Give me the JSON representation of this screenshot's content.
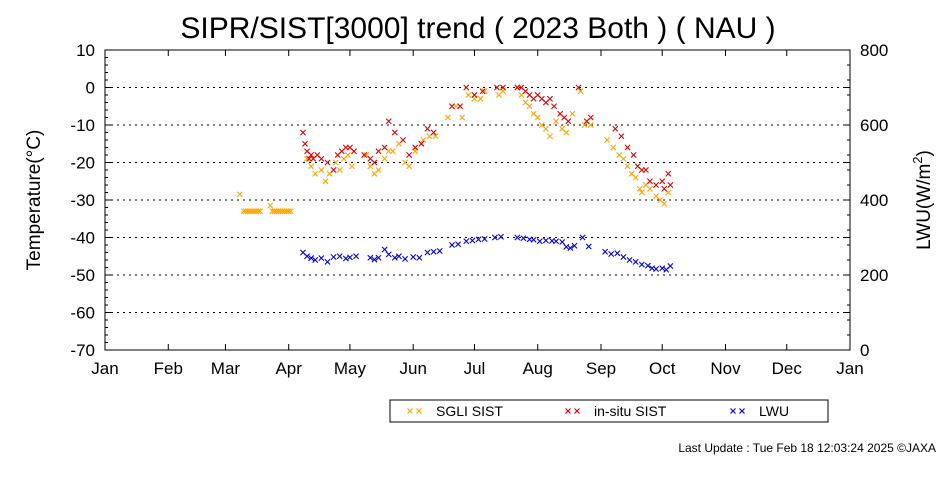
{
  "chart_data": {
    "type": "scatter",
    "title": "SIPR/SIST[3000] trend ( 2023 Both ) ( NAU )",
    "ylabel": "Temperature(°C)",
    "ylabel2": "LWU(W/m²)",
    "ylim": [
      -70,
      10
    ],
    "ylim2": [
      0,
      800
    ],
    "yticks": [
      10,
      0,
      -10,
      -20,
      -30,
      -40,
      -50,
      -60,
      -70
    ],
    "yticks2": [
      800,
      600,
      400,
      200,
      0
    ],
    "xtick_labels": [
      "Jan",
      "Feb",
      "Mar",
      "Apr",
      "May",
      "Jun",
      "Jul",
      "Aug",
      "Sep",
      "Oct",
      "Nov",
      "Dec",
      "Jan"
    ],
    "grid": "dotted horizontal",
    "legend_position": "bottom",
    "series": [
      {
        "name": "SGLI SIST",
        "color": "#ffa500",
        "marker": "x",
        "axis": "left",
        "points": [
          [
            "2023-03-08",
            -28.5
          ],
          [
            "2023-03-10",
            -33
          ],
          [
            "2023-03-11",
            -33
          ],
          [
            "2023-03-12",
            -33
          ],
          [
            "2023-03-13",
            -33
          ],
          [
            "2023-03-14",
            -33
          ],
          [
            "2023-03-15",
            -33
          ],
          [
            "2023-03-16",
            -33
          ],
          [
            "2023-03-17",
            -33
          ],
          [
            "2023-03-18",
            -33
          ],
          [
            "2023-03-23",
            -31.5
          ],
          [
            "2023-03-24",
            -33
          ],
          [
            "2023-03-25",
            -33
          ],
          [
            "2023-03-26",
            -33
          ],
          [
            "2023-03-27",
            -33
          ],
          [
            "2023-03-28",
            -33
          ],
          [
            "2023-03-29",
            -33
          ],
          [
            "2023-03-30",
            -33
          ],
          [
            "2023-03-31",
            -33
          ],
          [
            "2023-04-01",
            -33
          ],
          [
            "2023-04-02",
            -33
          ],
          [
            "2023-04-10",
            -19
          ],
          [
            "2023-04-12",
            -21
          ],
          [
            "2023-04-14",
            -23
          ],
          [
            "2023-04-17",
            -22
          ],
          [
            "2023-04-19",
            -25
          ],
          [
            "2023-04-21",
            -23
          ],
          [
            "2023-04-24",
            -20
          ],
          [
            "2023-04-26",
            -22
          ],
          [
            "2023-04-28",
            -19
          ],
          [
            "2023-04-30",
            -18
          ],
          [
            "2023-05-02",
            -21
          ],
          [
            "2023-05-09",
            -18
          ],
          [
            "2023-05-11",
            -21
          ],
          [
            "2023-05-13",
            -23
          ],
          [
            "2023-05-15",
            -22
          ],
          [
            "2023-05-18",
            -19
          ],
          [
            "2023-05-20",
            -17
          ],
          [
            "2023-05-22",
            -17
          ],
          [
            "2023-05-25",
            -15
          ],
          [
            "2023-05-28",
            -20
          ],
          [
            "2023-05-30",
            -21
          ],
          [
            "2023-06-02",
            -17
          ],
          [
            "2023-06-06",
            -14
          ],
          [
            "2023-06-09",
            -13
          ],
          [
            "2023-06-12",
            -13
          ],
          [
            "2023-06-18",
            -8
          ],
          [
            "2023-06-22",
            -5
          ],
          [
            "2023-06-25",
            -8
          ],
          [
            "2023-06-28",
            -2
          ],
          [
            "2023-07-01",
            -3
          ],
          [
            "2023-07-04",
            -3
          ],
          [
            "2023-07-06",
            -1
          ],
          [
            "2023-07-13",
            -2
          ],
          [
            "2023-07-15",
            -1
          ],
          [
            "2023-07-22",
            0
          ],
          [
            "2023-07-24",
            -2
          ],
          [
            "2023-07-26",
            -4
          ],
          [
            "2023-07-28",
            -5
          ],
          [
            "2023-07-30",
            -7
          ],
          [
            "2023-08-01",
            -8
          ],
          [
            "2023-08-03",
            -10
          ],
          [
            "2023-08-05",
            -11
          ],
          [
            "2023-08-07",
            -13
          ],
          [
            "2023-08-10",
            -9
          ],
          [
            "2023-08-13",
            -11
          ],
          [
            "2023-08-15",
            -12
          ],
          [
            "2023-08-18",
            -7
          ],
          [
            "2023-08-22",
            -1
          ],
          [
            "2023-08-24",
            -10
          ],
          [
            "2023-08-27",
            -10
          ],
          [
            "2023-09-04",
            -14
          ],
          [
            "2023-09-07",
            -16
          ],
          [
            "2023-09-10",
            -18
          ],
          [
            "2023-09-12",
            -19
          ],
          [
            "2023-09-14",
            -21
          ],
          [
            "2023-09-16",
            -23
          ],
          [
            "2023-09-18",
            -24
          ],
          [
            "2023-09-20",
            -27
          ],
          [
            "2023-09-21",
            -28
          ],
          [
            "2023-09-23",
            -26
          ],
          [
            "2023-09-25",
            -27
          ],
          [
            "2023-09-28",
            -29
          ],
          [
            "2023-09-30",
            -30
          ],
          [
            "2023-10-02",
            -31
          ],
          [
            "2023-10-04",
            -28
          ]
        ]
      },
      {
        "name": "in-situ SIST",
        "color": "#e00000",
        "marker": "x",
        "axis": "left",
        "points": [
          [
            "2023-04-08",
            -12
          ],
          [
            "2023-04-09",
            -15
          ],
          [
            "2023-04-10",
            -17
          ],
          [
            "2023-04-11",
            -19
          ],
          [
            "2023-04-12",
            -18
          ],
          [
            "2023-04-13",
            -19
          ],
          [
            "2023-04-15",
            -18
          ],
          [
            "2023-04-17",
            -19
          ],
          [
            "2023-04-20",
            -20
          ],
          [
            "2023-04-23",
            -22
          ],
          [
            "2023-04-25",
            -18
          ],
          [
            "2023-04-27",
            -17
          ],
          [
            "2023-04-29",
            -16
          ],
          [
            "2023-05-01",
            -16
          ],
          [
            "2023-05-03",
            -17
          ],
          [
            "2023-05-08",
            -18
          ],
          [
            "2023-05-11",
            -19
          ],
          [
            "2023-05-13",
            -20
          ],
          [
            "2023-05-15",
            -17
          ],
          [
            "2023-05-18",
            -16
          ],
          [
            "2023-05-20",
            -9
          ],
          [
            "2023-05-23",
            -12
          ],
          [
            "2023-05-27",
            -14
          ],
          [
            "2023-05-30",
            -18
          ],
          [
            "2023-06-02",
            -16
          ],
          [
            "2023-06-05",
            -15
          ],
          [
            "2023-06-08",
            -11
          ],
          [
            "2023-06-11",
            -12
          ],
          [
            "2023-06-20",
            -5
          ],
          [
            "2023-06-24",
            -5
          ],
          [
            "2023-06-27",
            0
          ],
          [
            "2023-07-01",
            -2
          ],
          [
            "2023-07-05",
            -1
          ],
          [
            "2023-07-12",
            0
          ],
          [
            "2023-07-15",
            0
          ],
          [
            "2023-07-22",
            0
          ],
          [
            "2023-07-24",
            0
          ],
          [
            "2023-07-26",
            -1
          ],
          [
            "2023-07-28",
            -2
          ],
          [
            "2023-07-30",
            -3
          ],
          [
            "2023-08-01",
            -2
          ],
          [
            "2023-08-03",
            -3
          ],
          [
            "2023-08-05",
            -4
          ],
          [
            "2023-08-07",
            -3
          ],
          [
            "2023-08-09",
            -5
          ],
          [
            "2023-08-12",
            -7
          ],
          [
            "2023-08-14",
            -8
          ],
          [
            "2023-08-16",
            -9
          ],
          [
            "2023-08-21",
            0
          ],
          [
            "2023-08-25",
            -9
          ],
          [
            "2023-08-27",
            -8
          ],
          [
            "2023-09-08",
            -11
          ],
          [
            "2023-09-11",
            -13
          ],
          [
            "2023-09-14",
            -16
          ],
          [
            "2023-09-17",
            -18
          ],
          [
            "2023-09-19",
            -21
          ],
          [
            "2023-09-21",
            -22
          ],
          [
            "2023-09-23",
            -22
          ],
          [
            "2023-09-25",
            -25
          ],
          [
            "2023-09-28",
            -26
          ],
          [
            "2023-10-01",
            -25
          ],
          [
            "2023-10-02",
            -27
          ],
          [
            "2023-10-04",
            -23
          ],
          [
            "2023-10-05",
            -26
          ]
        ]
      },
      {
        "name": "LWU",
        "color": "#0000e0",
        "marker": "x",
        "axis": "right",
        "points": [
          [
            "2023-04-08",
            260
          ],
          [
            "2023-04-10",
            250
          ],
          [
            "2023-04-12",
            245
          ],
          [
            "2023-04-14",
            240
          ],
          [
            "2023-04-17",
            245
          ],
          [
            "2023-04-20",
            235
          ],
          [
            "2023-04-23",
            248
          ],
          [
            "2023-04-26",
            250
          ],
          [
            "2023-04-29",
            244
          ],
          [
            "2023-05-01",
            247
          ],
          [
            "2023-05-04",
            250
          ],
          [
            "2023-05-11",
            246
          ],
          [
            "2023-05-13",
            241
          ],
          [
            "2023-05-15",
            246
          ],
          [
            "2023-05-18",
            268
          ],
          [
            "2023-05-20",
            255
          ],
          [
            "2023-05-23",
            246
          ],
          [
            "2023-05-25",
            250
          ],
          [
            "2023-05-28",
            243
          ],
          [
            "2023-06-01",
            248
          ],
          [
            "2023-06-04",
            246
          ],
          [
            "2023-06-08",
            260
          ],
          [
            "2023-06-11",
            262
          ],
          [
            "2023-06-14",
            264
          ],
          [
            "2023-06-20",
            280
          ],
          [
            "2023-06-23",
            282
          ],
          [
            "2023-06-27",
            290
          ],
          [
            "2023-06-30",
            292
          ],
          [
            "2023-07-03",
            295
          ],
          [
            "2023-07-06",
            296
          ],
          [
            "2023-07-11",
            300
          ],
          [
            "2023-07-14",
            302
          ],
          [
            "2023-07-22",
            300
          ],
          [
            "2023-07-25",
            298
          ],
          [
            "2023-07-28",
            295
          ],
          [
            "2023-07-30",
            294
          ],
          [
            "2023-08-02",
            290
          ],
          [
            "2023-08-05",
            292
          ],
          [
            "2023-08-08",
            291
          ],
          [
            "2023-08-10",
            290
          ],
          [
            "2023-08-13",
            288
          ],
          [
            "2023-08-15",
            275
          ],
          [
            "2023-08-17",
            272
          ],
          [
            "2023-08-19",
            278
          ],
          [
            "2023-08-23",
            300
          ],
          [
            "2023-08-26",
            276
          ],
          [
            "2023-09-03",
            262
          ],
          [
            "2023-09-06",
            256
          ],
          [
            "2023-09-09",
            258
          ],
          [
            "2023-09-12",
            248
          ],
          [
            "2023-09-15",
            240
          ],
          [
            "2023-09-18",
            235
          ],
          [
            "2023-09-21",
            228
          ],
          [
            "2023-09-24",
            225
          ],
          [
            "2023-09-26",
            218
          ],
          [
            "2023-09-28",
            216
          ],
          [
            "2023-10-01",
            218
          ],
          [
            "2023-10-03",
            214
          ],
          [
            "2023-10-05",
            224
          ]
        ]
      }
    ]
  },
  "footer": {
    "last_update": "Last Update : Tue Feb 18 12:03:24 2025  ©JAXA"
  }
}
